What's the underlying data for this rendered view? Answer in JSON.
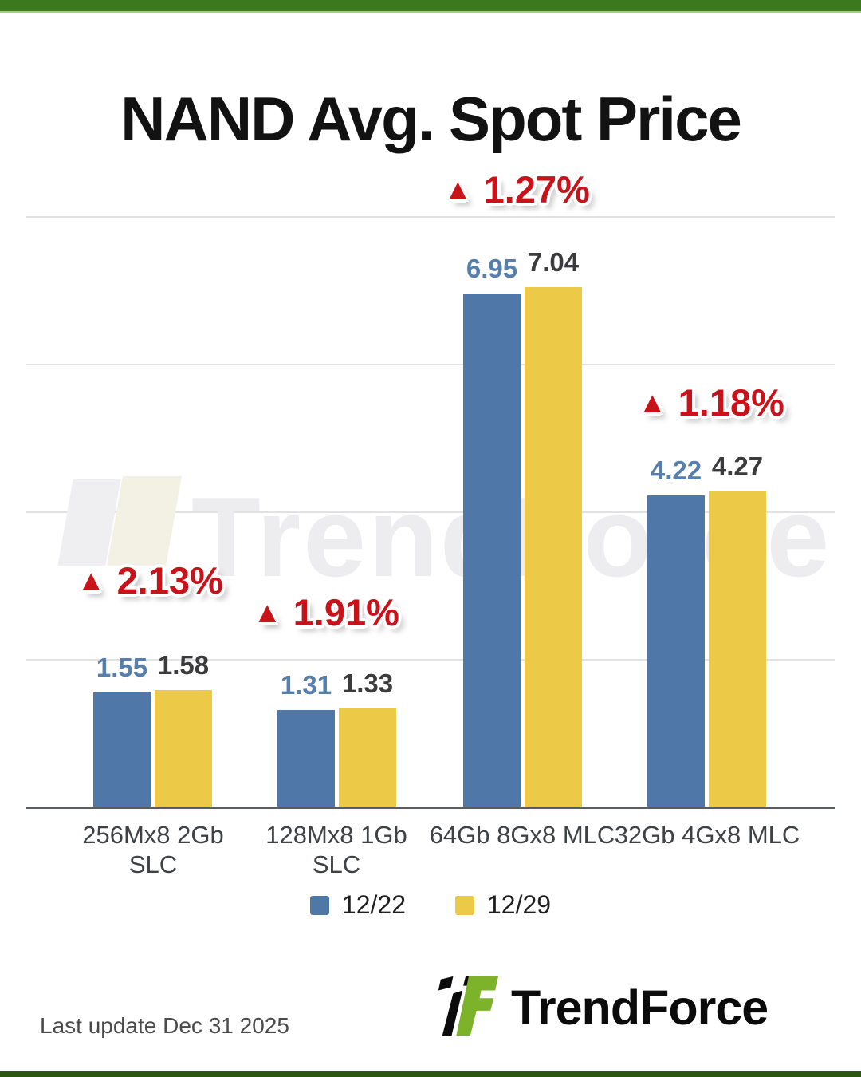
{
  "page": {
    "title": "NAND Avg. Spot Price",
    "last_update": "Last update Dec 31  2025",
    "watermark_text": "TrendForce",
    "brand_name": "TrendForce"
  },
  "icons": {
    "up_triangle": "▲"
  },
  "colors": {
    "top_bar_green": "#3c781e",
    "logo_green": "#7db32a",
    "annotation_red": "#c8131a",
    "grid_gray": "#e2e2e5",
    "axis_gray": "#595c60",
    "blue_label": "#567fae",
    "dark_label": "#3b3b3d"
  },
  "chart_data": {
    "type": "bar",
    "title": "NAND Avg. Spot Price",
    "categories": [
      "256Mx8 2Gb SLC",
      "128Mx8 1Gb SLC",
      "64Gb 8Gx8 MLC",
      "32Gb 4Gx8 MLC"
    ],
    "series": [
      {
        "name": "12/22",
        "color": "#4f78a8",
        "values": [
          1.55,
          1.31,
          6.95,
          4.22
        ]
      },
      {
        "name": "12/29",
        "color": "#ecc947",
        "values": [
          1.58,
          1.33,
          7.04,
          4.27
        ]
      }
    ],
    "changes": [
      "2.13%",
      "1.91%",
      "1.27%",
      "1.18%"
    ],
    "xlabel": "",
    "ylabel": "",
    "ylim": [
      0,
      8.7
    ],
    "gridline_values": [
      2,
      4,
      6,
      8
    ],
    "y_axis_labels_shown": false,
    "grid": "horizontal",
    "legend_position": "bottom"
  }
}
